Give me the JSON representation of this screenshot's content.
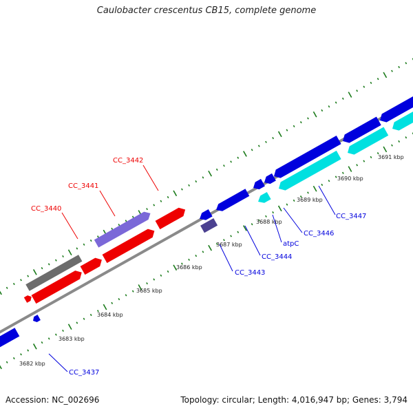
{
  "title": "Caulobacter crescentus CB15, complete genome",
  "footer": {
    "accession": "Accession: NC_002696",
    "stats": "Topology: circular; Length: 4,016,947 bp; Genes: 3,794"
  },
  "colors": {
    "backbone": "#8a8a8a",
    "tick": "#1a7a1a",
    "cds_forward": "#ee0000",
    "cds_reverse": "#0000dd",
    "rna": "#00e0e0",
    "pseudo": "#6c6c6c",
    "other_forward": "#7b68d8",
    "other_reverse": "#4b4190"
  },
  "scale_labels": [
    "3682 kbp",
    "3683 kbp",
    "3684 kbp",
    "3685 kbp",
    "3686 kbp",
    "3687 kbp",
    "3688 kbp",
    "3689 kbp",
    "3690 kbp",
    "3691 kbp"
  ],
  "features": [
    {
      "name": "f1",
      "type": "pseudo"
    },
    {
      "name": "f2",
      "type": "cds_forward"
    },
    {
      "name": "f3",
      "type": "cds_forward"
    },
    {
      "name": "f4",
      "type": "cds_forward"
    },
    {
      "name": "f5",
      "type": "cds_forward"
    },
    {
      "name": "f6",
      "type": "cds_forward"
    },
    {
      "name": "f7",
      "type": "pseudo"
    },
    {
      "name": "f8",
      "type": "other_forward"
    },
    {
      "name": "f9",
      "type": "cds_reverse"
    },
    {
      "name": "f10",
      "type": "other_reverse"
    },
    {
      "name": "f11",
      "type": "cds_reverse"
    },
    {
      "name": "f12",
      "type": "cds_reverse"
    },
    {
      "name": "f13",
      "type": "rna"
    },
    {
      "name": "f14",
      "type": "cds_reverse"
    },
    {
      "name": "f15",
      "type": "rna"
    },
    {
      "name": "f16",
      "type": "cds_reverse"
    },
    {
      "name": "f17",
      "type": "rna"
    },
    {
      "name": "f18",
      "type": "cds_reverse"
    },
    {
      "name": "f19",
      "type": "rna"
    },
    {
      "name": "f20",
      "type": "cds_reverse"
    },
    {
      "name": "f21",
      "type": "cds_reverse"
    },
    {
      "name": "f22",
      "type": "cds_reverse"
    }
  ],
  "gene_labels": [
    {
      "text": "CC_3440",
      "strand": "forward"
    },
    {
      "text": "CC_3441",
      "strand": "forward"
    },
    {
      "text": "CC_3442",
      "strand": "forward"
    },
    {
      "text": "CC_3437",
      "strand": "reverse"
    },
    {
      "text": "CC_3443",
      "strand": "reverse"
    },
    {
      "text": "CC_3444",
      "strand": "reverse"
    },
    {
      "text": "atpC",
      "strand": "reverse"
    },
    {
      "text": "CC_3446",
      "strand": "reverse"
    },
    {
      "text": "CC_3447",
      "strand": "reverse"
    }
  ]
}
